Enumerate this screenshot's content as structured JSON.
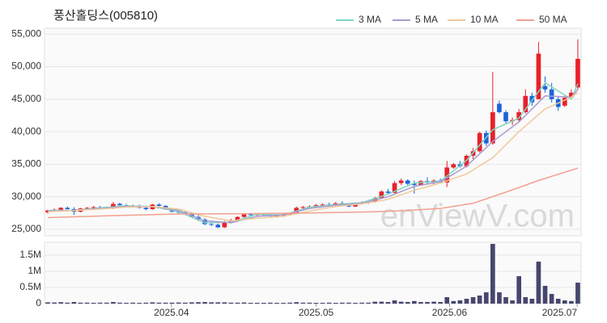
{
  "chart_data": [
    {
      "type": "candlestick",
      "title": "풍산홀딩스(005810)",
      "watermark": "enViewV.com",
      "up_color": "#e8202a",
      "down_color": "#1b64da",
      "open": [
        27600,
        27900,
        28000,
        28300,
        28100,
        27700,
        28200,
        28300,
        28400,
        28300,
        28200,
        28900,
        28700,
        28500,
        28600,
        28300,
        28100,
        28800,
        28600,
        28100,
        27700,
        27600,
        27500,
        26900,
        26500,
        25800,
        25700,
        25300,
        26100,
        26400,
        26900,
        27300,
        27200,
        27300,
        27200,
        27000,
        27100,
        27300,
        27500,
        28300,
        28400,
        28500,
        28700,
        28800,
        28700,
        29000,
        28800,
        28500,
        29000,
        29100,
        29200,
        29800,
        30800,
        30600,
        32100,
        32500,
        32000,
        31800,
        32400,
        32200,
        32500,
        32200,
        34500,
        35000,
        34700,
        36300,
        37000,
        39800,
        38200,
        44300,
        43000,
        41600,
        41800,
        43000,
        45500,
        45000,
        47000,
        46500,
        45000,
        44000,
        45300,
        46800
      ],
      "high": [
        28000,
        28200,
        28400,
        28500,
        28400,
        28300,
        28400,
        28600,
        28600,
        28500,
        29200,
        29100,
        28900,
        28800,
        28800,
        28500,
        28900,
        29000,
        28700,
        28300,
        28000,
        27900,
        27600,
        27200,
        26700,
        26200,
        25900,
        26300,
        26600,
        27000,
        27400,
        27500,
        27400,
        27500,
        27400,
        27300,
        27400,
        27600,
        28500,
        28600,
        28700,
        28900,
        29000,
        29100,
        29200,
        29300,
        29000,
        29100,
        29300,
        29400,
        30000,
        31000,
        31200,
        32400,
        32800,
        32700,
        32500,
        32600,
        33000,
        32700,
        32800,
        35500,
        35200,
        35500,
        36500,
        37500,
        40000,
        40200,
        49200,
        44800,
        43300,
        42200,
        43500,
        46500,
        46000,
        53800,
        48500,
        47500,
        45500,
        45500,
        46500,
        54200
      ],
      "low": [
        27400,
        27700,
        27900,
        28000,
        27200,
        27600,
        28000,
        28100,
        28200,
        28100,
        28100,
        28600,
        28400,
        28300,
        28200,
        27900,
        28000,
        28500,
        28000,
        27600,
        27400,
        27300,
        26800,
        26300,
        25600,
        25500,
        25200,
        25200,
        25900,
        26300,
        26700,
        27000,
        27000,
        27100,
        26900,
        26800,
        26900,
        27100,
        27400,
        28000,
        28100,
        28300,
        28500,
        28500,
        28600,
        28700,
        28400,
        28400,
        28800,
        28900,
        29100,
        29700,
        30400,
        30500,
        31800,
        31800,
        30500,
        31700,
        32000,
        31900,
        32000,
        31500,
        34300,
        34500,
        34500,
        35800,
        36800,
        37800,
        38000,
        42800,
        41300,
        41000,
        41500,
        42800,
        44000,
        45000,
        46000,
        44500,
        43200,
        43800,
        45000,
        46500
      ],
      "close": [
        27900,
        28000,
        28300,
        28100,
        27700,
        28200,
        28300,
        28400,
        28300,
        28200,
        28900,
        28700,
        28500,
        28600,
        28300,
        28100,
        28800,
        28600,
        28100,
        27700,
        27600,
        27500,
        26900,
        26500,
        25800,
        25700,
        25300,
        26100,
        26400,
        26900,
        27300,
        27200,
        27300,
        27200,
        27000,
        27100,
        27300,
        27500,
        28300,
        28400,
        28500,
        28700,
        28800,
        28700,
        29000,
        28800,
        28500,
        29000,
        29100,
        29200,
        29800,
        30800,
        30600,
        32100,
        32500,
        32000,
        31800,
        32400,
        32200,
        32500,
        32200,
        34500,
        35000,
        34700,
        36300,
        37000,
        39800,
        38200,
        43000,
        43000,
        41600,
        41800,
        43000,
        45500,
        44500,
        52000,
        46500,
        45000,
        43800,
        45200,
        46000,
        51200
      ],
      "series": [
        {
          "name": "3 MA",
          "color": "#7fd6c2",
          "x": [
            0,
            4,
            8,
            12,
            16,
            20,
            24,
            28,
            32,
            36,
            40,
            44,
            48,
            52,
            56,
            60,
            64,
            68,
            72,
            76,
            80,
            81
          ],
          "values": [
            27900,
            27900,
            28300,
            28600,
            28500,
            27700,
            26000,
            26100,
            27300,
            27200,
            28400,
            28800,
            29100,
            30400,
            32100,
            32400,
            35600,
            40300,
            42100,
            47500,
            45000,
            47400
          ]
        },
        {
          "name": "5 MA",
          "color": "#a99bd0",
          "x": [
            0,
            4,
            8,
            12,
            16,
            20,
            24,
            28,
            32,
            36,
            40,
            44,
            48,
            52,
            56,
            60,
            64,
            68,
            72,
            76,
            80,
            81
          ],
          "values": [
            27800,
            27900,
            28200,
            28500,
            28500,
            27900,
            26300,
            26000,
            27000,
            27200,
            28200,
            28700,
            29000,
            30000,
            31600,
            32300,
            34700,
            38500,
            41500,
            45500,
            45300,
            46500
          ]
        },
        {
          "name": "10 MA",
          "color": "#f0c99a",
          "x": [
            0,
            4,
            8,
            12,
            16,
            20,
            24,
            28,
            32,
            36,
            40,
            44,
            48,
            52,
            56,
            60,
            64,
            68,
            72,
            76,
            80,
            81
          ],
          "values": [
            27700,
            27900,
            28100,
            28400,
            28500,
            28100,
            27000,
            26300,
            26700,
            27000,
            27800,
            28500,
            28900,
            29600,
            31000,
            32100,
            33500,
            36000,
            40000,
            43500,
            45300,
            46000
          ]
        },
        {
          "name": "50 MA",
          "color": "#f3a08e",
          "x": [
            0,
            10,
            20,
            30,
            40,
            50,
            55,
            60,
            65,
            70,
            75,
            81
          ],
          "values": [
            26800,
            27100,
            27350,
            27400,
            27500,
            27700,
            27900,
            28200,
            29000,
            30700,
            32500,
            34400
          ]
        }
      ],
      "xlim": [
        -0.5,
        81.5
      ],
      "ylim": [
        24000,
        55900
      ],
      "yticks": [
        {
          "value": 25000,
          "label": "25,000"
        },
        {
          "value": 30000,
          "label": "30,000"
        },
        {
          "value": 35000,
          "label": "35,000"
        },
        {
          "value": 40000,
          "label": "40,000"
        },
        {
          "value": 45000,
          "label": "45,000"
        },
        {
          "value": 50000,
          "label": "50,000"
        },
        {
          "value": 55000,
          "label": "55,000"
        }
      ],
      "grid": true
    },
    {
      "type": "bar",
      "color": "#46466e",
      "values": [
        40000,
        35000,
        45000,
        30000,
        50000,
        30000,
        30000,
        25000,
        30000,
        30000,
        50000,
        30000,
        25000,
        30000,
        25000,
        30000,
        40000,
        30000,
        30000,
        30000,
        35000,
        30000,
        40000,
        45000,
        50000,
        40000,
        40000,
        40000,
        30000,
        30000,
        35000,
        25000,
        25000,
        25000,
        30000,
        25000,
        25000,
        30000,
        45000,
        30000,
        30000,
        25000,
        25000,
        30000,
        25000,
        30000,
        30000,
        25000,
        30000,
        30000,
        60000,
        60000,
        50000,
        100000,
        60000,
        50000,
        80000,
        50000,
        50000,
        60000,
        50000,
        200000,
        80000,
        100000,
        150000,
        200000,
        250000,
        350000,
        1850000,
        350000,
        200000,
        100000,
        850000,
        200000,
        150000,
        1300000,
        550000,
        300000,
        150000,
        100000,
        80000,
        650000
      ],
      "xlim": [
        -0.5,
        81.5
      ],
      "ylim": [
        0,
        1900000
      ],
      "yticks": [
        0,
        {
          "value": 500000,
          "label": "0.5M"
        },
        {
          "value": 1000000,
          "label": "1M"
        },
        {
          "value": 1500000,
          "label": "1.5M"
        }
      ],
      "xticks": [
        {
          "value": 18.9,
          "label": "2025.04"
        },
        {
          "value": 41.0,
          "label": "2025.05"
        },
        {
          "value": 61.4,
          "label": "2025.06"
        },
        {
          "value": 80.9,
          "label": "2025.07"
        }
      ],
      "grid": true
    }
  ]
}
